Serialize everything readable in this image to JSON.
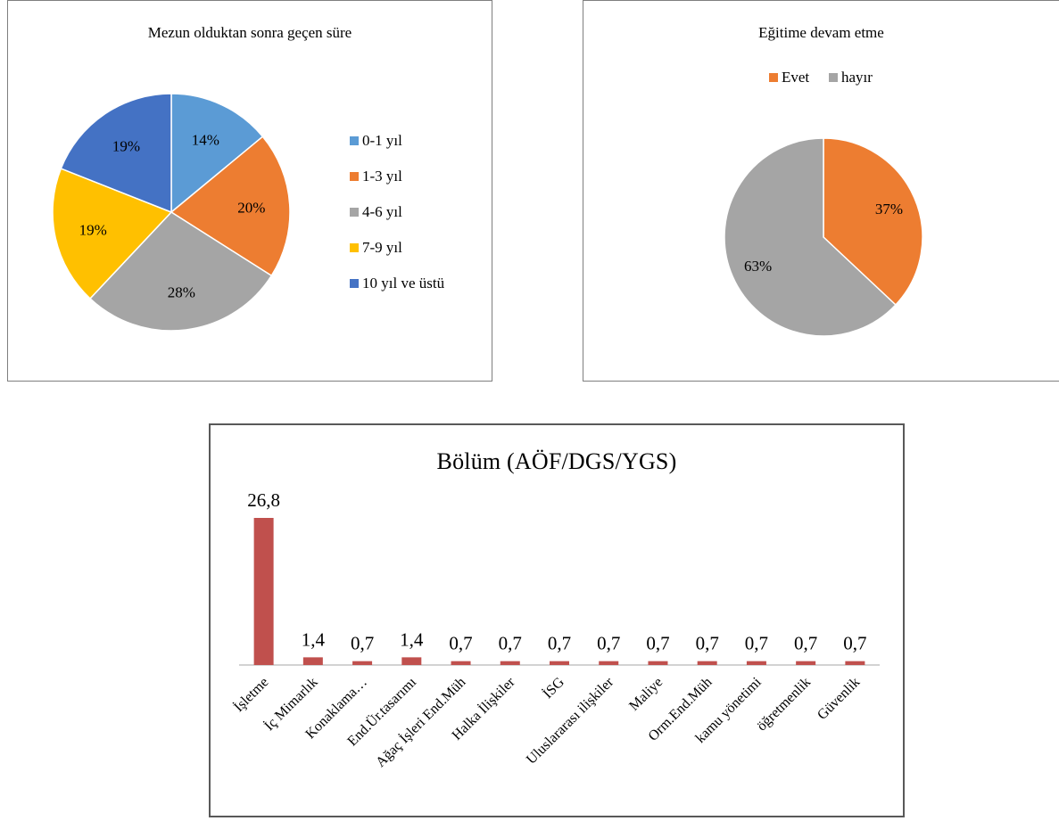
{
  "chart_data": [
    {
      "type": "pie",
      "title": "Mezun olduktan sonra geçen süre",
      "legend_position": "right",
      "slices": [
        {
          "label": "0-1 yıl",
          "value": 14,
          "display": "14%",
          "color": "#5b9bd5"
        },
        {
          "label": "1-3 yıl",
          "value": 20,
          "display": "20%",
          "color": "#ed7d31"
        },
        {
          "label": "4-6 yıl",
          "value": 28,
          "display": "28%",
          "color": "#a5a5a5"
        },
        {
          "label": "7-9 yıl",
          "value": 19,
          "display": "19%",
          "color": "#ffc000"
        },
        {
          "label": "10 yıl ve üstü",
          "value": 19,
          "display": "19%",
          "color": "#4472c4"
        }
      ]
    },
    {
      "type": "pie",
      "title": "Eğitime devam etme",
      "legend_position": "top",
      "slices": [
        {
          "label": "Evet",
          "value": 37,
          "display": "37%",
          "color": "#ed7d31"
        },
        {
          "label": "hayır",
          "value": 63,
          "display": "63%",
          "color": "#a5a5a5"
        }
      ]
    },
    {
      "type": "bar",
      "title": "Bölüm (AÖF/DGS/YGS)",
      "bar_color": "#c0504d",
      "categories": [
        "İşletme",
        "İç Mimarlık",
        "Konaklama…",
        "End.Ür.tasarımı",
        "Ağaç İşleri End.Müh",
        "Halka İlişkiler",
        "İSG",
        "Uluslararası ilişkiler",
        "Maliye",
        "Orm.End.Müh",
        "kamu yönetimi",
        "öğretmenlik",
        "Güvenlik"
      ],
      "values": [
        26.8,
        1.4,
        0.7,
        1.4,
        0.7,
        0.7,
        0.7,
        0.7,
        0.7,
        0.7,
        0.7,
        0.7,
        0.7
      ],
      "value_labels": [
        "26,8",
        "1,4",
        "0,7",
        "1,4",
        "0,7",
        "0,7",
        "0,7",
        "0,7",
        "0,7",
        "0,7",
        "0,7",
        "0,7",
        "0,7"
      ],
      "ylim": [
        0,
        26.8
      ],
      "grid": false
    }
  ]
}
